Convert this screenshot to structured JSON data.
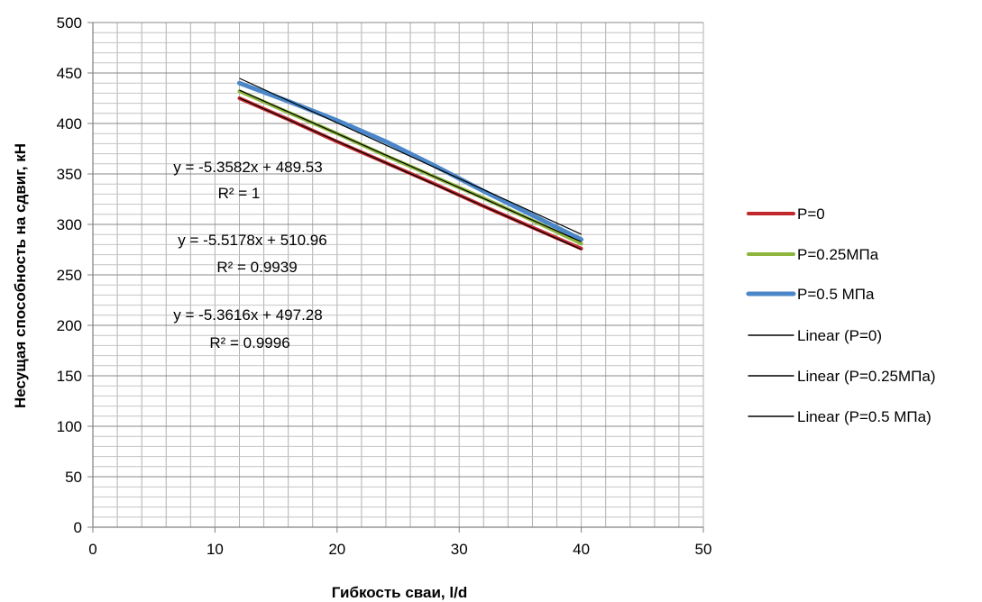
{
  "chart_data": {
    "type": "line",
    "xlabel": "Гибкость сваи, l/d",
    "ylabel": "Несущая способность на сдвиг, кН",
    "xlim": [
      0,
      50
    ],
    "ylim": [
      0,
      500
    ],
    "x_major_ticks": [
      0,
      10,
      20,
      30,
      40,
      50
    ],
    "y_major_ticks": [
      0,
      50,
      100,
      150,
      200,
      250,
      300,
      350,
      400,
      450,
      500
    ],
    "grid": true,
    "legend_position": "right",
    "series": [
      {
        "name": "P=0",
        "color": "#c0282d",
        "x": [
          12,
          16,
          20,
          24,
          28,
          32,
          36,
          40
        ],
        "y": [
          425,
          404,
          382,
          361,
          340,
          318,
          297,
          276
        ]
      },
      {
        "name": "P=0.25МПа",
        "color": "#8db53c",
        "x": [
          12,
          16,
          20,
          24,
          28,
          32,
          36,
          40
        ],
        "y": [
          432,
          411,
          390,
          368,
          347,
          326,
          304,
          281
        ]
      },
      {
        "name": "P=0.5 МПа",
        "color": "#4a86c8",
        "x": [
          12,
          16,
          20,
          24,
          28,
          32,
          36,
          40
        ],
        "y": [
          440,
          422,
          403,
          382,
          358,
          333,
          309,
          285
        ]
      },
      {
        "name": "Linear (P=0)",
        "color": "#000000",
        "trend": true,
        "slope": -5.3582,
        "intercept": 489.53,
        "x_range": [
          12,
          40
        ]
      },
      {
        "name": "Linear (P=0.25МПа)",
        "color": "#000000",
        "trend": true,
        "slope": -5.3616,
        "intercept": 497.28,
        "x_range": [
          12,
          40
        ]
      },
      {
        "name": "Linear (P=0.5 МПа)",
        "color": "#000000",
        "trend": true,
        "slope": -5.5178,
        "intercept": 510.96,
        "x_range": [
          12,
          40
        ]
      }
    ],
    "annotations": [
      {
        "eq": "y = -5.3582x + 489.53",
        "r2": "R² = 1"
      },
      {
        "eq": "y = -5.5178x + 510.96",
        "r2": "R² = 0.9939"
      },
      {
        "eq": "y = -5.3616x + 497.28",
        "r2": "R² = 0.9996"
      }
    ]
  }
}
